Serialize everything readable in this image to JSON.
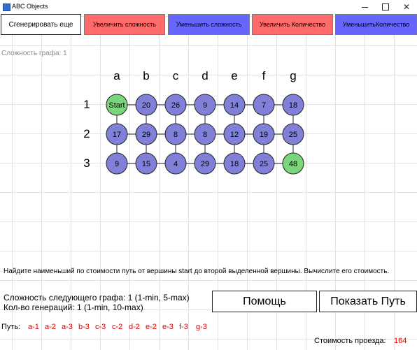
{
  "window": {
    "title": "ABC Objects",
    "controls": [
      "minimize",
      "maximize",
      "close"
    ]
  },
  "toolbar": {
    "generate": "Сгенерировать еще",
    "increase_complexity": "Увеличить сложность",
    "decrease_complexity": "Уменьшить сложность",
    "increase_count": "Увеличить Количество",
    "decrease_count": "УменьшитьКоличество"
  },
  "graph": {
    "complexity_label": "Сложность графа: 1",
    "columns": [
      "a",
      "b",
      "c",
      "d",
      "e",
      "f",
      "g"
    ],
    "rows": [
      "1",
      "2",
      "3"
    ],
    "nodes": [
      [
        "Start",
        "20",
        "26",
        "9",
        "14",
        "7",
        "18"
      ],
      [
        "17",
        "29",
        "8",
        "8",
        "12",
        "19",
        "25"
      ],
      [
        "9",
        "15",
        "4",
        "29",
        "18",
        "25",
        "48"
      ]
    ],
    "highlighted": [
      [
        0,
        0
      ],
      [
        2,
        6
      ]
    ],
    "colors": {
      "node_fill": "#8080d8",
      "highlight_fill": "#7ad67a",
      "node_border": "#222222"
    }
  },
  "task_text": "Найдите наименьший по стоимости путь от вершины start до второй выделенной вершины. Вычислите его стоимость.",
  "info": {
    "next_complexity": "Сложность следующего графа: 1      (1-min, 5-max)",
    "generations": "Кол-во генераций: 1     (1-min, 10-max)"
  },
  "buttons": {
    "help": "Помощь",
    "show_path": "Показать Путь"
  },
  "path": {
    "label": "Путь:",
    "steps": [
      "a-1",
      "a-2",
      "a-3",
      "b-3",
      "c-3",
      "c-2",
      "d-2",
      "e-2",
      "e-3",
      "f-3",
      "g-3"
    ]
  },
  "cost": {
    "label": "Стоимость проезда:",
    "value": "164"
  }
}
